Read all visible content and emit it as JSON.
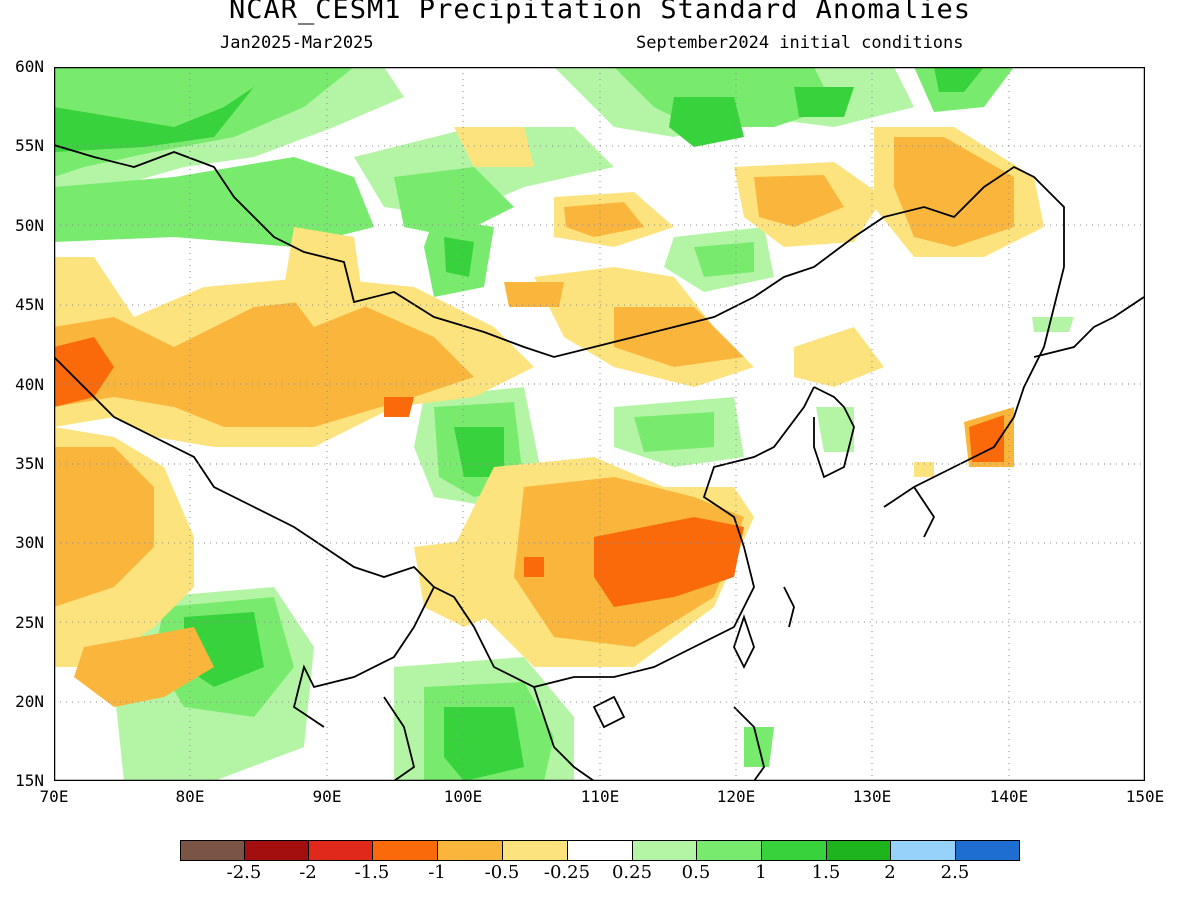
{
  "header": {
    "title": "NCAR_CESM1 Precipitation Standard Anomalies",
    "period": "Jan2025-Mar2025",
    "init": "September2024 initial conditions"
  },
  "axes": {
    "lat_labels": [
      "60N",
      "55N",
      "50N",
      "45N",
      "40N",
      "35N",
      "30N",
      "25N",
      "20N",
      "15N"
    ],
    "lon_labels": [
      "70E",
      "80E",
      "90E",
      "100E",
      "110E",
      "120E",
      "130E",
      "140E",
      "150E"
    ]
  },
  "colorbar": {
    "colors": [
      "#7a5545",
      "#a30f0f",
      "#e0281b",
      "#fa6a0a",
      "#fab63c",
      "#fde37d",
      "#ffffff",
      "#b4f5a5",
      "#78eb6e",
      "#37d23c",
      "#1eb41e",
      "#96d2fa",
      "#1e6ed2"
    ],
    "labels": [
      "-2.5",
      "-2",
      "-1.5",
      "-1",
      "-0.5",
      "-0.25",
      "0.25",
      "0.5",
      "1",
      "1.5",
      "2",
      "2.5"
    ]
  }
}
